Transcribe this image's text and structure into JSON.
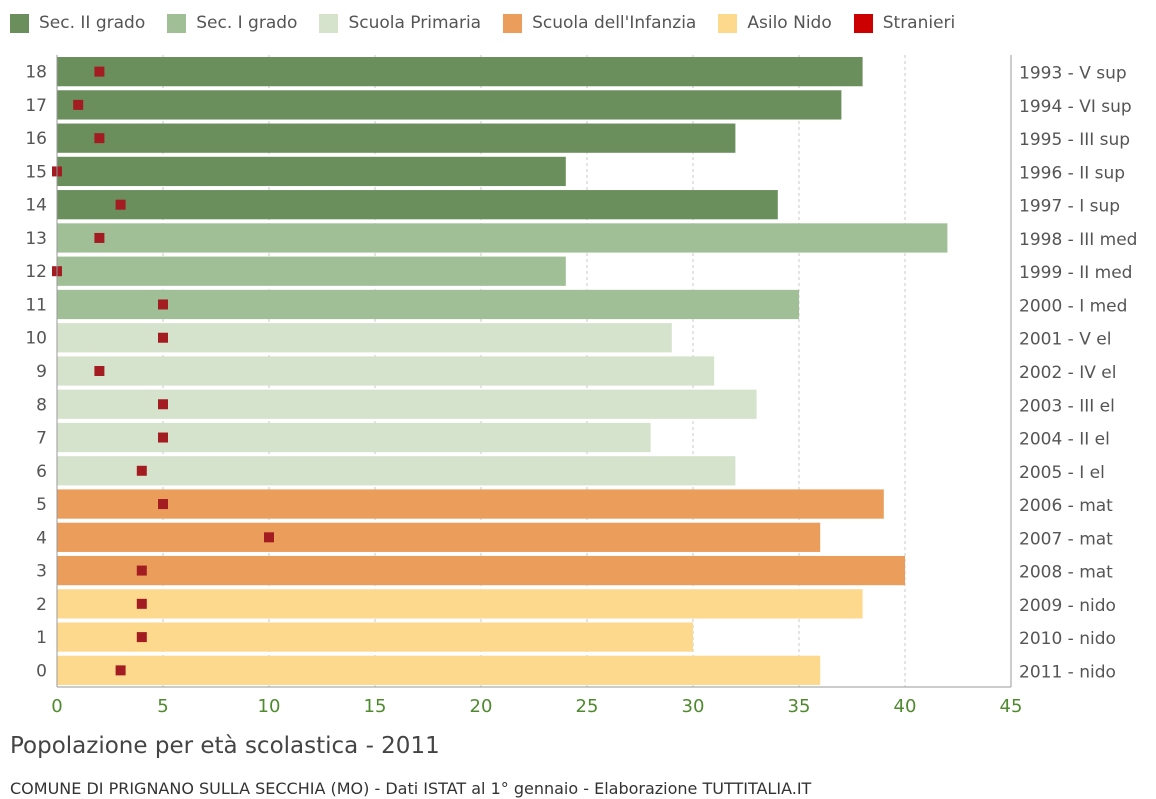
{
  "chart_data": {
    "type": "bar",
    "orientation": "horizontal",
    "title": "Popolazione per età scolastica - 2011",
    "caption": "COMUNE DI PRIGNANO SULLA SECCHIA (MO) - Dati ISTAT al 1° gennaio - Elaborazione TUTTITALIA.IT",
    "xlim": [
      0,
      45
    ],
    "x_ticks": [
      "0",
      "5",
      "10",
      "15",
      "20",
      "25",
      "30",
      "35",
      "40",
      "45"
    ],
    "grid": true,
    "legend_position": "top",
    "legend": [
      {
        "name": "Sec. II grado",
        "color": "#6a8f5c"
      },
      {
        "name": "Sec. I grado",
        "color": "#a0bf96"
      },
      {
        "name": "Scuola Primaria",
        "color": "#d6e3cc"
      },
      {
        "name": "Scuola dell'Infanzia",
        "color": "#eb9d5b"
      },
      {
        "name": "Asilo Nido",
        "color": "#fdd98e"
      },
      {
        "name": "Stranieri",
        "color": "#cc0000"
      }
    ],
    "stranieri_marker_color": "#a31c22",
    "rows": [
      {
        "age": "18",
        "label": "1993 - V sup",
        "group": "Sec. II grado",
        "value": 38,
        "stranieri": 2
      },
      {
        "age": "17",
        "label": "1994 - VI sup",
        "group": "Sec. II grado",
        "value": 37,
        "stranieri": 1
      },
      {
        "age": "16",
        "label": "1995 - III sup",
        "group": "Sec. II grado",
        "value": 32,
        "stranieri": 2
      },
      {
        "age": "15",
        "label": "1996 - II sup",
        "group": "Sec. II grado",
        "value": 24,
        "stranieri": 0
      },
      {
        "age": "14",
        "label": "1997 - I sup",
        "group": "Sec. II grado",
        "value": 34,
        "stranieri": 3
      },
      {
        "age": "13",
        "label": "1998 - III med",
        "group": "Sec. I grado",
        "value": 42,
        "stranieri": 2
      },
      {
        "age": "12",
        "label": "1999 - II med",
        "group": "Sec. I grado",
        "value": 24,
        "stranieri": 0
      },
      {
        "age": "11",
        "label": "2000 - I med",
        "group": "Sec. I grado",
        "value": 35,
        "stranieri": 5
      },
      {
        "age": "10",
        "label": "2001 - V el",
        "group": "Scuola Primaria",
        "value": 29,
        "stranieri": 5
      },
      {
        "age": "9",
        "label": "2002 - IV el",
        "group": "Scuola Primaria",
        "value": 31,
        "stranieri": 2
      },
      {
        "age": "8",
        "label": "2003 - III el",
        "group": "Scuola Primaria",
        "value": 33,
        "stranieri": 5
      },
      {
        "age": "7",
        "label": "2004 - II el",
        "group": "Scuola Primaria",
        "value": 28,
        "stranieri": 5
      },
      {
        "age": "6",
        "label": "2005 - I el",
        "group": "Scuola Primaria",
        "value": 32,
        "stranieri": 4
      },
      {
        "age": "5",
        "label": "2006 - mat",
        "group": "Scuola dell'Infanzia",
        "value": 39,
        "stranieri": 5
      },
      {
        "age": "4",
        "label": "2007 - mat",
        "group": "Scuola dell'Infanzia",
        "value": 36,
        "stranieri": 10
      },
      {
        "age": "3",
        "label": "2008 - mat",
        "group": "Scuola dell'Infanzia",
        "value": 40,
        "stranieri": 4
      },
      {
        "age": "2",
        "label": "2009 - nido",
        "group": "Asilo Nido",
        "value": 38,
        "stranieri": 4
      },
      {
        "age": "1",
        "label": "2010 - nido",
        "group": "Asilo Nido",
        "value": 30,
        "stranieri": 4
      },
      {
        "age": "0",
        "label": "2011 - nido",
        "group": "Asilo Nido",
        "value": 36,
        "stranieri": 3
      }
    ]
  }
}
